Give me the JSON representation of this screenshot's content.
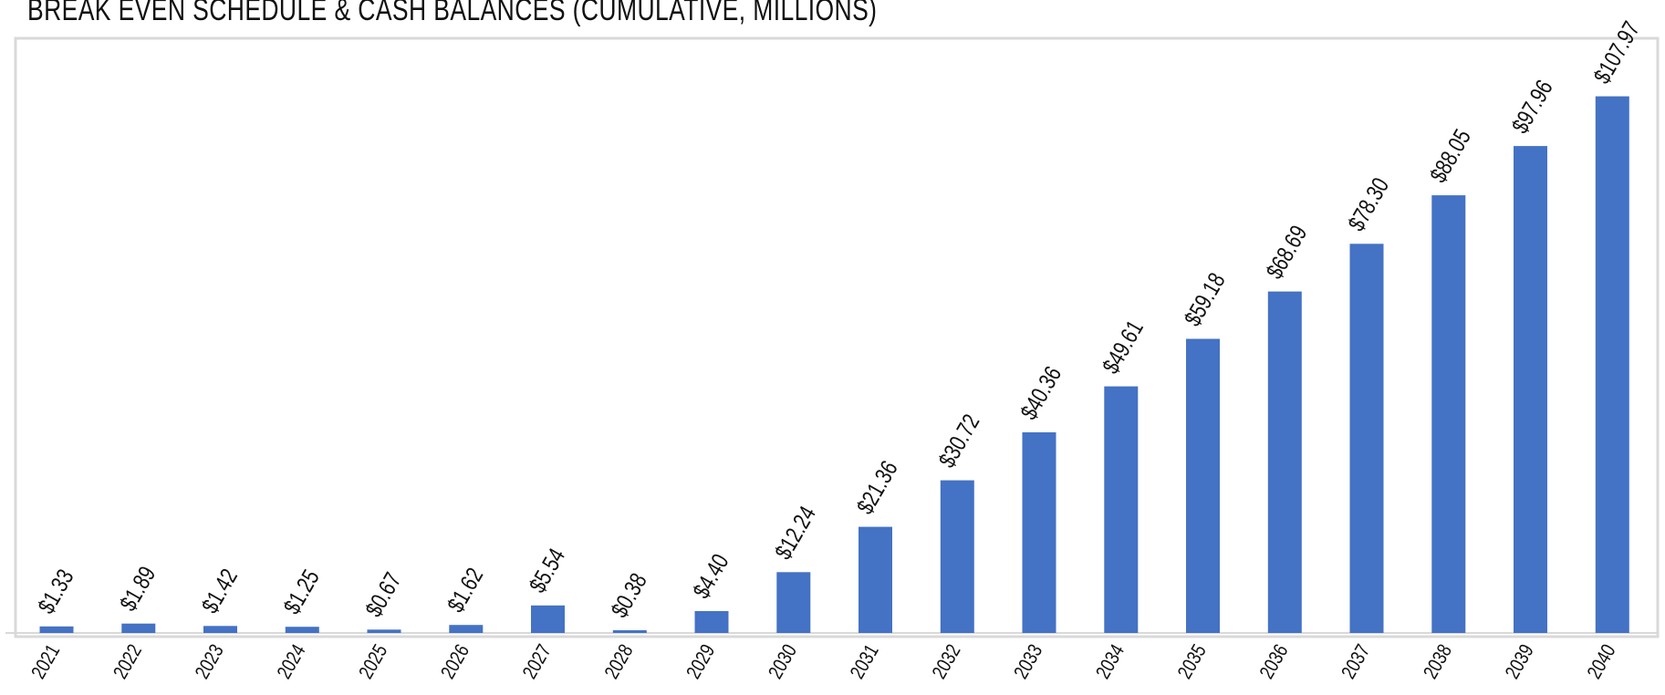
{
  "chart_data": {
    "type": "bar",
    "title": "BREAK EVEN SCHEDULE & CASH BALANCES (CUMULATIVE, MILLIONS)",
    "xlabel": "",
    "ylabel": "",
    "categories": [
      "2021",
      "2022",
      "2023",
      "2024",
      "2025",
      "2026",
      "2027",
      "2028",
      "2029",
      "2030",
      "2031",
      "2032",
      "2033",
      "2034",
      "2035",
      "2036",
      "2037",
      "2038",
      "2039",
      "2040"
    ],
    "values": [
      1.33,
      1.89,
      1.42,
      1.25,
      0.67,
      1.62,
      5.54,
      0.38,
      4.4,
      12.24,
      21.36,
      30.72,
      40.36,
      49.61,
      59.18,
      68.69,
      78.3,
      88.05,
      97.96,
      107.97
    ],
    "value_labels": [
      "$1.33",
      "$1.89",
      "$1.42",
      "$1.25",
      "$0.67",
      "$1.62",
      "$5.54",
      "$0.38",
      "$4.40",
      "$12.24",
      "$21.36",
      "$30.72",
      "$40.36",
      "$49.61",
      "$59.18",
      "$68.69",
      "$78.30",
      "$88.05",
      "$97.96",
      "$107.97"
    ],
    "ylim": [
      0,
      120
    ],
    "grid": false,
    "legend": "none",
    "bar_color": "#4472C4",
    "axis_color": "#D9D9D9",
    "border_color": "#D9D9D9"
  }
}
